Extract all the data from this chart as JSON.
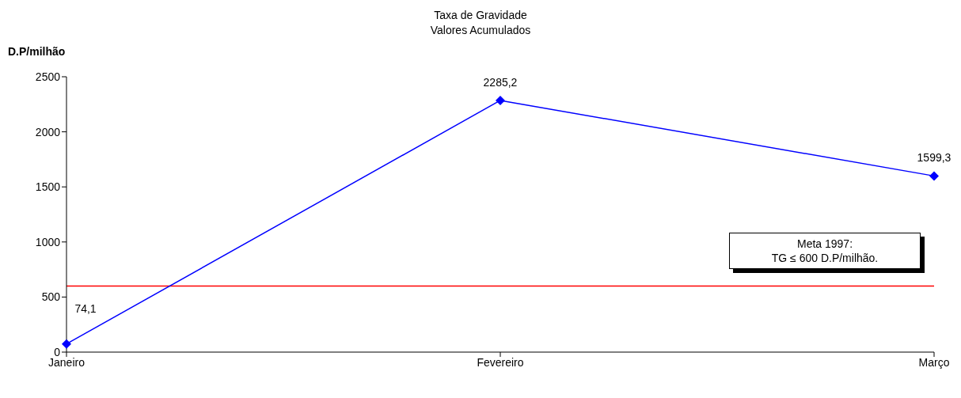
{
  "chart_data": {
    "type": "line",
    "title": "Taxa de Gravidade",
    "subtitle": "Valores Acumulados",
    "ylabel": "D.P/milhão",
    "categories": [
      "Janeiro",
      "Fevereiro",
      "Março"
    ],
    "series": [
      {
        "color": "#0000ff",
        "values": [
          74.1,
          2285.2,
          1599.3
        ],
        "value_labels": [
          "74,1",
          "2285,2",
          "1599,3"
        ]
      }
    ],
    "ylim": [
      0,
      2500
    ],
    "yticks": [
      0,
      500,
      1000,
      1500,
      2000,
      2500
    ],
    "grid": false,
    "marker": "diamond",
    "line_style": "solid",
    "ref_lines": [
      {
        "axis": "y",
        "value": 600,
        "color": "#ff0000"
      }
    ],
    "annotations": [
      "Meta 1997:\nTG ≤ 600 D.P/milhão."
    ]
  }
}
